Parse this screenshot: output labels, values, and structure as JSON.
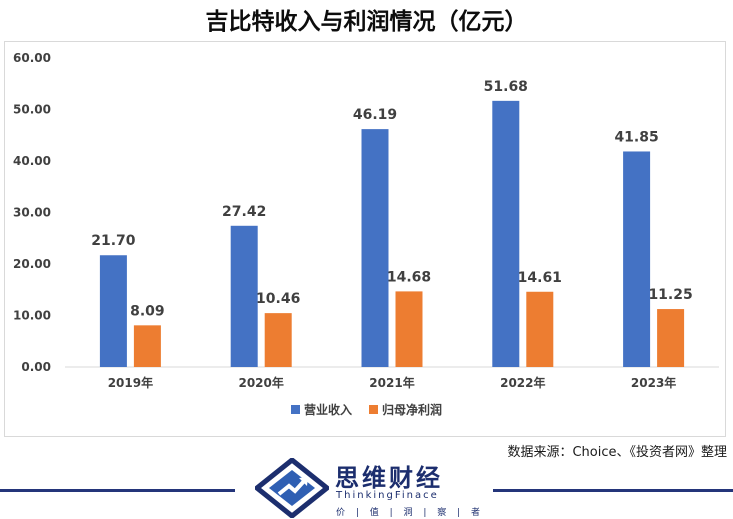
{
  "chart_data": {
    "type": "bar",
    "title": "吉比特收入与利润情况（亿元）",
    "categories": [
      "2019年",
      "2020年",
      "2021年",
      "2022年",
      "2023年"
    ],
    "series": [
      {
        "name": "营业收入",
        "values": [
          21.7,
          27.42,
          46.19,
          51.68,
          41.85
        ],
        "labels": [
          "21.70",
          "27.42",
          "46.19",
          "51.68",
          "41.85"
        ],
        "color": "#4472c4"
      },
      {
        "name": "归母净利润",
        "values": [
          8.09,
          10.46,
          14.68,
          14.61,
          11.25
        ],
        "labels": [
          "8.09",
          "10.46",
          "14.68",
          "14.61",
          "11.25"
        ],
        "color": "#ed7d31"
      }
    ],
    "ylim": [
      0,
      60
    ],
    "yticks": [
      "0.00",
      "10.00",
      "20.00",
      "30.00",
      "40.00",
      "50.00",
      "60.00"
    ],
    "grid": false,
    "legend": "bottom",
    "xlabel": "",
    "ylabel": ""
  },
  "source": "数据来源：Choice、《投资者网》整理",
  "brand": {
    "name": "思维财经",
    "english": "ThinkingFinace",
    "slogan": "价 | 值 | 洞 | 察 | 者",
    "color": "#1c2e6e"
  }
}
